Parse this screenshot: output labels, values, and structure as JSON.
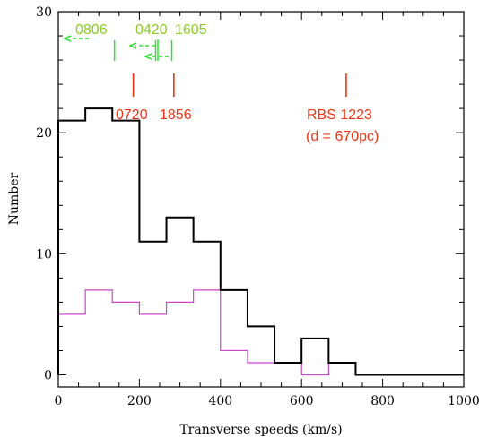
{
  "chart_data": {
    "type": "histogram",
    "xlabel": "Transverse speeds (km/s)",
    "ylabel": "Number",
    "xlim": [
      0,
      1000
    ],
    "ylim": [
      -1,
      30
    ],
    "xticks": [
      0,
      200,
      400,
      600,
      800,
      1000
    ],
    "yticks": [
      0,
      10,
      20,
      30
    ],
    "grid": false,
    "series": [
      {
        "color": "#000000",
        "bin_edges": [
          0,
          66.7,
          133.3,
          200,
          266.7,
          333.3,
          400,
          466.7,
          533.3,
          600,
          666.7,
          733.3,
          800,
          866.7,
          933.3,
          1000
        ],
        "counts": [
          21,
          22,
          21,
          11,
          13,
          11,
          7,
          4,
          1,
          3,
          1,
          0,
          0,
          0,
          0
        ]
      },
      {
        "color": "#cc44cc",
        "bin_edges": [
          0,
          66.7,
          133.3,
          200,
          266.7,
          333.3,
          400,
          466.7,
          533.3,
          600,
          666.7,
          733.3,
          800,
          866.7,
          933.3,
          1000
        ],
        "counts": [
          5,
          7,
          6,
          5,
          6,
          7,
          2,
          1,
          1,
          0,
          1,
          0,
          0,
          0,
          0
        ]
      }
    ],
    "annotations": [
      {
        "text": "0806",
        "x": 70,
        "color": "#88cc22",
        "row": "green",
        "arrow": true,
        "arrow_color": "#33dd33"
      },
      {
        "text": "0420",
        "x": 240,
        "color": "#88cc22",
        "row": "green",
        "arrow": true,
        "arrow_color": "#33dd33"
      },
      {
        "text": "1605",
        "x": 280,
        "color": "#88cc22",
        "row": "green",
        "arrow": true,
        "arrow_color": "#33dd33"
      },
      {
        "text": "0720",
        "x": 185,
        "color": "#ee3311",
        "row": "red"
      },
      {
        "text": "1856",
        "x": 285,
        "color": "#ee3311",
        "row": "red"
      },
      {
        "text": "RBS 1223",
        "x": 710,
        "color": "#ee3311",
        "row": "red",
        "subtext": "(d = 670pc)"
      }
    ]
  }
}
